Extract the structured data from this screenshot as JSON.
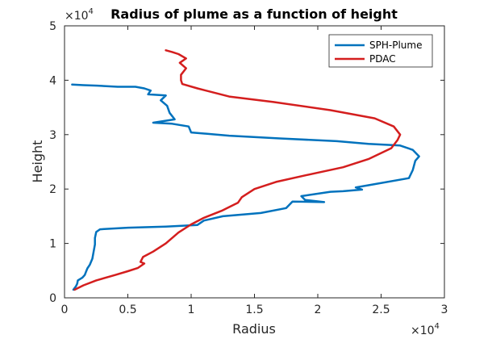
{
  "chart_data": {
    "type": "line",
    "title": "Radius of plume as a function of height",
    "xlabel": "Radius",
    "ylabel": "Height",
    "xlim": [
      0,
      30000
    ],
    "ylim": [
      0,
      50000
    ],
    "x_ticks": [
      0,
      5000,
      10000,
      15000,
      20000,
      25000,
      30000
    ],
    "x_tick_labels": [
      "0",
      "0.5",
      "1",
      "1.5",
      "2",
      "2.5",
      "3"
    ],
    "y_ticks": [
      0,
      10000,
      20000,
      30000,
      40000,
      50000
    ],
    "y_tick_labels": [
      "0",
      "1",
      "2",
      "3",
      "4",
      "5"
    ],
    "x_exponent": {
      "base": "×10",
      "power": "4"
    },
    "y_exponent": {
      "base": "×10",
      "power": "4"
    },
    "grid": false,
    "legend_position": "top-right",
    "series": [
      {
        "name": "SPH-Plume",
        "color": "#0072BD",
        "points": [
          [
            700,
            1500
          ],
          [
            900,
            2100
          ],
          [
            1000,
            2600
          ],
          [
            1050,
            3200
          ],
          [
            1400,
            3700
          ],
          [
            1600,
            4200
          ],
          [
            1700,
            4800
          ],
          [
            1800,
            5400
          ],
          [
            2000,
            6100
          ],
          [
            2200,
            7200
          ],
          [
            2300,
            8500
          ],
          [
            2400,
            9800
          ],
          [
            2400,
            11000
          ],
          [
            2500,
            12100
          ],
          [
            2800,
            12600
          ],
          [
            5000,
            12900
          ],
          [
            8000,
            13100
          ],
          [
            10500,
            13400
          ],
          [
            11000,
            14200
          ],
          [
            12500,
            15000
          ],
          [
            15500,
            15600
          ],
          [
            17500,
            16500
          ],
          [
            18000,
            17700
          ],
          [
            20500,
            17600
          ],
          [
            19000,
            18000
          ],
          [
            18700,
            18700
          ],
          [
            21000,
            19500
          ],
          [
            22000,
            19600
          ],
          [
            23500,
            19900
          ],
          [
            23000,
            20300
          ],
          [
            24000,
            20700
          ],
          [
            27200,
            22000
          ],
          [
            27500,
            23500
          ],
          [
            27700,
            25200
          ],
          [
            28000,
            26000
          ],
          [
            27500,
            27200
          ],
          [
            26500,
            28000
          ],
          [
            24000,
            28300
          ],
          [
            21500,
            28800
          ],
          [
            17000,
            29300
          ],
          [
            13000,
            29800
          ],
          [
            10000,
            30400
          ],
          [
            9800,
            31500
          ],
          [
            8500,
            32000
          ],
          [
            7000,
            32200
          ],
          [
            8700,
            32800
          ],
          [
            8300,
            34000
          ],
          [
            8100,
            35300
          ],
          [
            7600,
            36300
          ],
          [
            8000,
            37200
          ],
          [
            6600,
            37400
          ],
          [
            6800,
            38100
          ],
          [
            6300,
            38500
          ],
          [
            5600,
            38800
          ],
          [
            4200,
            38800
          ],
          [
            2600,
            39000
          ],
          [
            1500,
            39100
          ],
          [
            600,
            39200
          ]
        ]
      },
      {
        "name": "PDAC",
        "color": "#D41E1E",
        "points": [
          [
            800,
            1500
          ],
          [
            1500,
            2300
          ],
          [
            2500,
            3200
          ],
          [
            4000,
            4200
          ],
          [
            5000,
            4900
          ],
          [
            5800,
            5500
          ],
          [
            6300,
            6300
          ],
          [
            6000,
            6600
          ],
          [
            6200,
            7500
          ],
          [
            7000,
            8500
          ],
          [
            8000,
            10000
          ],
          [
            9000,
            12000
          ],
          [
            10000,
            13500
          ],
          [
            11000,
            14700
          ],
          [
            12400,
            16000
          ],
          [
            13700,
            17500
          ],
          [
            14000,
            18500
          ],
          [
            15000,
            20000
          ],
          [
            16700,
            21300
          ],
          [
            19000,
            22500
          ],
          [
            22000,
            24000
          ],
          [
            24000,
            25500
          ],
          [
            25800,
            27500
          ],
          [
            26300,
            29000
          ],
          [
            26500,
            30000
          ],
          [
            26000,
            31500
          ],
          [
            24500,
            33000
          ],
          [
            21000,
            34500
          ],
          [
            16500,
            36000
          ],
          [
            13000,
            37000
          ],
          [
            10500,
            38500
          ],
          [
            9300,
            39300
          ],
          [
            9200,
            40000
          ],
          [
            9200,
            41000
          ],
          [
            9600,
            42200
          ],
          [
            9100,
            43200
          ],
          [
            9600,
            44000
          ],
          [
            9000,
            44800
          ],
          [
            8500,
            45200
          ],
          [
            8000,
            45500
          ]
        ]
      }
    ]
  }
}
